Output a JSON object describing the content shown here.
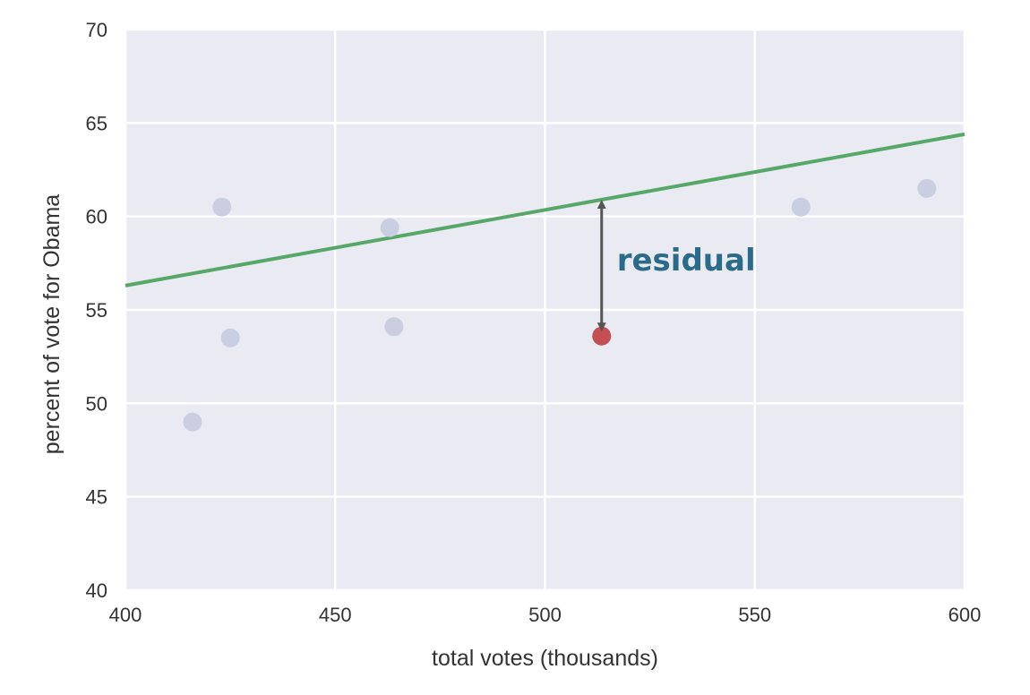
{
  "chart_data": {
    "type": "scatter",
    "title": "",
    "xlabel": "total votes (thousands)",
    "ylabel": "percent of vote for Obama",
    "xlim": [
      400,
      600
    ],
    "ylim": [
      40,
      70
    ],
    "x_ticks": [
      400,
      450,
      500,
      550,
      600
    ],
    "y_ticks": [
      40,
      45,
      50,
      55,
      60,
      65,
      70
    ],
    "x_tick_labels": [
      "400",
      "450",
      "500",
      "550",
      "600"
    ],
    "y_tick_labels": [
      "40",
      "45",
      "50",
      "55",
      "60",
      "65",
      "70"
    ],
    "grid": true,
    "points": [
      {
        "x": 416,
        "y": 49.0,
        "highlight": false
      },
      {
        "x": 423,
        "y": 60.5,
        "highlight": false
      },
      {
        "x": 425,
        "y": 53.5,
        "highlight": false
      },
      {
        "x": 463,
        "y": 59.4,
        "highlight": false
      },
      {
        "x": 464,
        "y": 54.1,
        "highlight": false
      },
      {
        "x": 513.5,
        "y": 53.6,
        "highlight": true
      },
      {
        "x": 561,
        "y": 60.5,
        "highlight": false
      },
      {
        "x": 591,
        "y": 61.5,
        "highlight": false
      }
    ],
    "fit_line": {
      "x": [
        400,
        600
      ],
      "y": [
        56.3,
        64.4
      ]
    },
    "annotation": {
      "text": "residual",
      "x": 513.5,
      "y_from": 53.6,
      "y_to": 60.8
    },
    "colors": {
      "background": "#eaeaf2",
      "grid": "#ffffff",
      "point": "#c9cfe0",
      "highlight_point": "#c44e52",
      "fit_line": "#55a868",
      "arrow": "#555555",
      "annotation_text": "#2b6b8a"
    }
  }
}
